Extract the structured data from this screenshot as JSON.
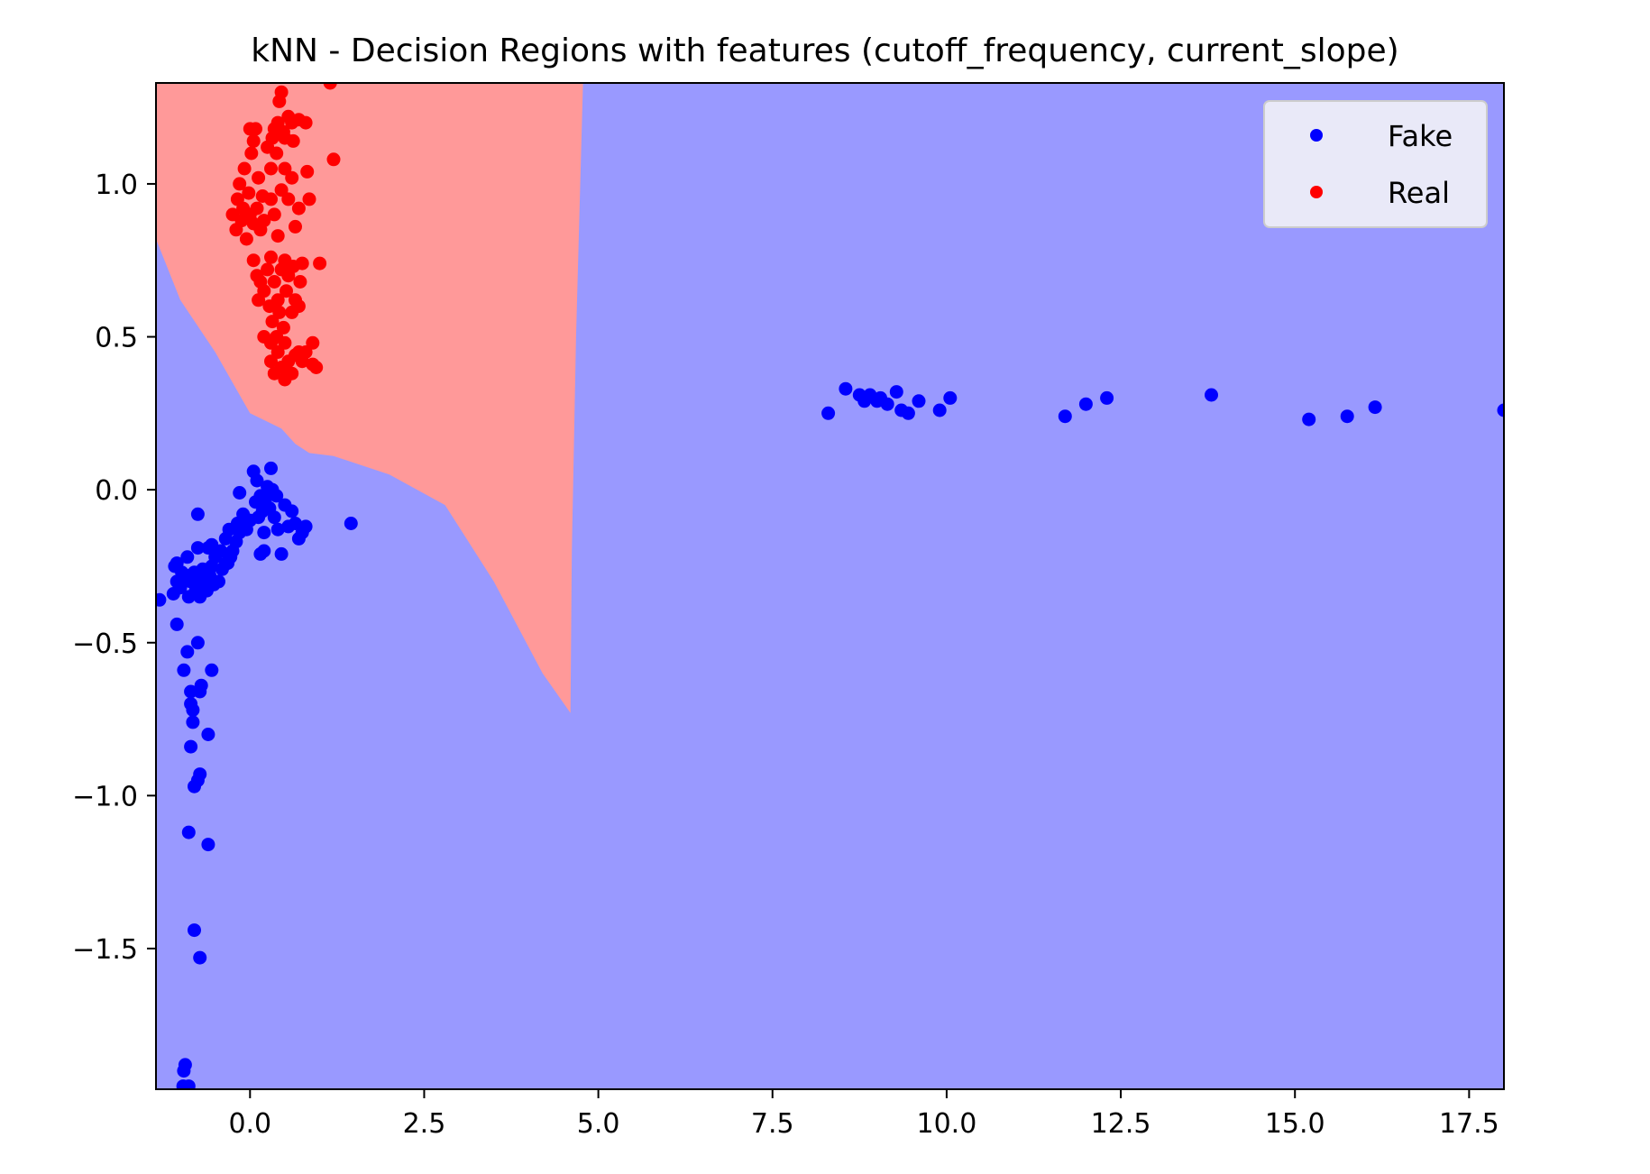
{
  "chart_data": {
    "type": "scatter",
    "title": "kNN - Decision Regions with features (cutoff_frequency, current_slope)",
    "xlabel": "",
    "ylabel": "",
    "xlim": [
      -1.35,
      18.0
    ],
    "ylim": [
      -1.96,
      1.33
    ],
    "x_ticks": [
      0.0,
      2.5,
      5.0,
      7.5,
      10.0,
      12.5,
      15.0,
      17.5
    ],
    "x_tick_labels": [
      "0.0",
      "2.5",
      "5.0",
      "7.5",
      "10.0",
      "12.5",
      "15.0",
      "17.5"
    ],
    "y_ticks": [
      1.0,
      0.5,
      0.0,
      -0.5,
      -1.0,
      -1.5
    ],
    "y_tick_labels": [
      "1.0",
      "0.5",
      "0.0",
      "−0.5",
      "−1.0",
      "−1.5"
    ],
    "grid": false,
    "legend_position": "top-right",
    "colors": {
      "fake_point": "#0000ff",
      "real_point": "#ff0000",
      "fake_region": "#9999ff",
      "real_region": "#ff9999",
      "legend_bg": "#e9e9f8"
    },
    "decision_regions": [
      {
        "class": "Real",
        "boundary": [
          [
            -1.35,
            1.33
          ],
          [
            4.78,
            1.33
          ],
          [
            4.68,
            0.5
          ],
          [
            4.62,
            -0.2
          ],
          [
            4.6,
            -0.73
          ],
          [
            4.2,
            -0.6
          ],
          [
            3.5,
            -0.3
          ],
          [
            2.8,
            -0.05
          ],
          [
            2.0,
            0.05
          ],
          [
            1.2,
            0.11
          ],
          [
            0.85,
            0.12
          ],
          [
            0.65,
            0.15
          ],
          [
            0.45,
            0.2
          ],
          [
            0.0,
            0.25
          ],
          [
            -0.5,
            0.45
          ],
          [
            -1.0,
            0.62
          ],
          [
            -1.35,
            0.82
          ]
        ]
      }
    ],
    "series": [
      {
        "name": "Fake",
        "points": [
          [
            -1.3,
            -0.36
          ],
          [
            -1.1,
            -0.34
          ],
          [
            -1.08,
            -0.25
          ],
          [
            -1.05,
            -0.3
          ],
          [
            -1.0,
            -0.32
          ],
          [
            -0.98,
            -0.27
          ],
          [
            -0.95,
            -0.3
          ],
          [
            -0.92,
            -0.28
          ],
          [
            -0.9,
            -0.22
          ],
          [
            -0.88,
            -0.35
          ],
          [
            -0.85,
            -0.3
          ],
          [
            -0.8,
            -0.27
          ],
          [
            -0.78,
            -0.33
          ],
          [
            -0.75,
            -0.19
          ],
          [
            -0.72,
            -0.35
          ],
          [
            -0.7,
            -0.3
          ],
          [
            -0.68,
            -0.26
          ],
          [
            -0.65,
            -0.32
          ],
          [
            -0.6,
            -0.19
          ],
          [
            -0.58,
            -0.28
          ],
          [
            -0.55,
            -0.25
          ],
          [
            -0.52,
            -0.31
          ],
          [
            -0.5,
            -0.22
          ],
          [
            -0.45,
            -0.3
          ],
          [
            -0.42,
            -0.2
          ],
          [
            -0.4,
            -0.26
          ],
          [
            -0.35,
            -0.16
          ],
          [
            -0.32,
            -0.24
          ],
          [
            -0.3,
            -0.13
          ],
          [
            -0.28,
            -0.22
          ],
          [
            -0.25,
            -0.2
          ],
          [
            -0.2,
            -0.17
          ],
          [
            -0.18,
            -0.11
          ],
          [
            -0.15,
            -0.14
          ],
          [
            -0.1,
            -0.08
          ],
          [
            -0.05,
            -0.13
          ],
          [
            0.0,
            -0.1
          ],
          [
            0.05,
            0.06
          ],
          [
            0.08,
            -0.04
          ],
          [
            0.1,
            0.03
          ],
          [
            0.12,
            -0.09
          ],
          [
            0.15,
            -0.02
          ],
          [
            0.18,
            -0.07
          ],
          [
            0.2,
            -0.14
          ],
          [
            0.22,
            -0.03
          ],
          [
            0.25,
            0.01
          ],
          [
            0.28,
            -0.06
          ],
          [
            0.3,
            0.07
          ],
          [
            0.32,
            0.0
          ],
          [
            0.35,
            -0.09
          ],
          [
            0.38,
            -0.02
          ],
          [
            0.4,
            -0.13
          ],
          [
            0.45,
            -0.21
          ],
          [
            0.5,
            -0.05
          ],
          [
            0.55,
            -0.12
          ],
          [
            0.6,
            -0.07
          ],
          [
            0.65,
            -0.11
          ],
          [
            0.7,
            -0.16
          ],
          [
            0.75,
            -0.14
          ],
          [
            0.8,
            -0.12
          ],
          [
            0.2,
            -0.2
          ],
          [
            0.15,
            -0.21
          ],
          [
            -0.35,
            -0.24
          ],
          [
            -0.62,
            -0.33
          ],
          [
            -0.15,
            -0.01
          ],
          [
            1.45,
            -0.11
          ],
          [
            -0.75,
            -0.08
          ],
          [
            -1.05,
            -0.24
          ],
          [
            -0.55,
            -0.18
          ],
          [
            -1.05,
            -0.44
          ],
          [
            -0.95,
            -0.59
          ],
          [
            -0.9,
            -0.53
          ],
          [
            -0.75,
            -0.5
          ],
          [
            -0.55,
            -0.59
          ],
          [
            -0.7,
            -0.64
          ],
          [
            -0.72,
            -0.66
          ],
          [
            -0.85,
            -0.66
          ],
          [
            -0.85,
            -0.7
          ],
          [
            -0.82,
            -0.72
          ],
          [
            -0.82,
            -0.76
          ],
          [
            -0.6,
            -0.8
          ],
          [
            -0.85,
            -0.84
          ],
          [
            -0.72,
            -0.93
          ],
          [
            -0.75,
            -0.95
          ],
          [
            -0.8,
            -0.97
          ],
          [
            -0.88,
            -1.12
          ],
          [
            -0.6,
            -1.16
          ],
          [
            -0.8,
            -1.44
          ],
          [
            -0.72,
            -1.53
          ],
          [
            -0.95,
            -1.9
          ],
          [
            -0.93,
            -1.88
          ],
          [
            -0.96,
            -1.95
          ],
          [
            -0.88,
            -1.95
          ],
          [
            8.3,
            0.25
          ],
          [
            8.55,
            0.33
          ],
          [
            8.75,
            0.31
          ],
          [
            8.82,
            0.29
          ],
          [
            8.9,
            0.31
          ],
          [
            9.0,
            0.29
          ],
          [
            9.05,
            0.3
          ],
          [
            9.15,
            0.28
          ],
          [
            9.28,
            0.32
          ],
          [
            9.35,
            0.26
          ],
          [
            9.45,
            0.25
          ],
          [
            9.6,
            0.29
          ],
          [
            9.9,
            0.26
          ],
          [
            10.05,
            0.3
          ],
          [
            11.7,
            0.24
          ],
          [
            12.0,
            0.28
          ],
          [
            12.3,
            0.3
          ],
          [
            13.8,
            0.31
          ],
          [
            15.2,
            0.23
          ],
          [
            15.75,
            0.24
          ],
          [
            16.15,
            0.27
          ],
          [
            18.0,
            0.26
          ]
        ]
      },
      {
        "name": "Real",
        "points": [
          [
            -0.25,
            0.9
          ],
          [
            -0.2,
            0.85
          ],
          [
            -0.18,
            0.95
          ],
          [
            -0.15,
            1.0
          ],
          [
            -0.12,
            0.88
          ],
          [
            -0.1,
            0.92
          ],
          [
            -0.08,
            1.05
          ],
          [
            -0.05,
            0.82
          ],
          [
            -0.02,
            0.97
          ],
          [
            0.0,
            0.9
          ],
          [
            0.02,
            1.1
          ],
          [
            0.05,
            0.87
          ],
          [
            0.08,
            1.18
          ],
          [
            0.1,
            0.92
          ],
          [
            0.12,
            1.02
          ],
          [
            0.15,
            0.85
          ],
          [
            0.18,
            0.96
          ],
          [
            0.2,
            0.88
          ],
          [
            0.0,
            1.18
          ],
          [
            0.05,
            1.14
          ],
          [
            0.25,
            1.12
          ],
          [
            0.3,
            1.05
          ],
          [
            0.32,
            1.15
          ],
          [
            0.35,
            1.18
          ],
          [
            0.38,
            1.1
          ],
          [
            0.4,
            1.2
          ],
          [
            0.42,
            1.27
          ],
          [
            0.45,
            1.3
          ],
          [
            0.48,
            1.17
          ],
          [
            0.5,
            1.15
          ],
          [
            0.55,
            1.22
          ],
          [
            0.6,
            1.2
          ],
          [
            0.62,
            1.14
          ],
          [
            0.7,
            1.21
          ],
          [
            0.8,
            1.2
          ],
          [
            0.3,
            0.95
          ],
          [
            0.35,
            0.9
          ],
          [
            0.4,
            0.83
          ],
          [
            0.45,
            0.98
          ],
          [
            0.5,
            1.05
          ],
          [
            0.55,
            0.95
          ],
          [
            0.6,
            1.02
          ],
          [
            0.65,
            0.86
          ],
          [
            0.7,
            0.92
          ],
          [
            0.85,
            0.95
          ],
          [
            0.82,
            1.04
          ],
          [
            1.2,
            1.08
          ],
          [
            1.15,
            1.33
          ],
          [
            0.05,
            0.75
          ],
          [
            0.1,
            0.7
          ],
          [
            0.12,
            0.62
          ],
          [
            0.15,
            0.68
          ],
          [
            0.2,
            0.65
          ],
          [
            0.25,
            0.72
          ],
          [
            0.28,
            0.6
          ],
          [
            0.3,
            0.76
          ],
          [
            0.32,
            0.55
          ],
          [
            0.35,
            0.68
          ],
          [
            0.38,
            0.5
          ],
          [
            0.4,
            0.62
          ],
          [
            0.42,
            0.58
          ],
          [
            0.45,
            0.72
          ],
          [
            0.48,
            0.53
          ],
          [
            0.5,
            0.75
          ],
          [
            0.52,
            0.65
          ],
          [
            0.55,
            0.7
          ],
          [
            0.6,
            0.58
          ],
          [
            0.62,
            0.73
          ],
          [
            0.65,
            0.62
          ],
          [
            0.7,
            0.6
          ],
          [
            0.72,
            0.68
          ],
          [
            0.75,
            0.74
          ],
          [
            0.7,
            0.45
          ],
          [
            1.0,
            0.74
          ],
          [
            0.3,
            0.42
          ],
          [
            0.35,
            0.38
          ],
          [
            0.4,
            0.45
          ],
          [
            0.45,
            0.4
          ],
          [
            0.5,
            0.48
          ],
          [
            0.55,
            0.42
          ],
          [
            0.6,
            0.38
          ],
          [
            0.65,
            0.44
          ],
          [
            0.75,
            0.42
          ],
          [
            0.8,
            0.45
          ],
          [
            0.9,
            0.48
          ],
          [
            0.9,
            0.41
          ],
          [
            0.95,
            0.4
          ],
          [
            0.5,
            0.36
          ],
          [
            0.3,
            0.48
          ],
          [
            0.2,
            0.5
          ]
        ]
      }
    ]
  }
}
